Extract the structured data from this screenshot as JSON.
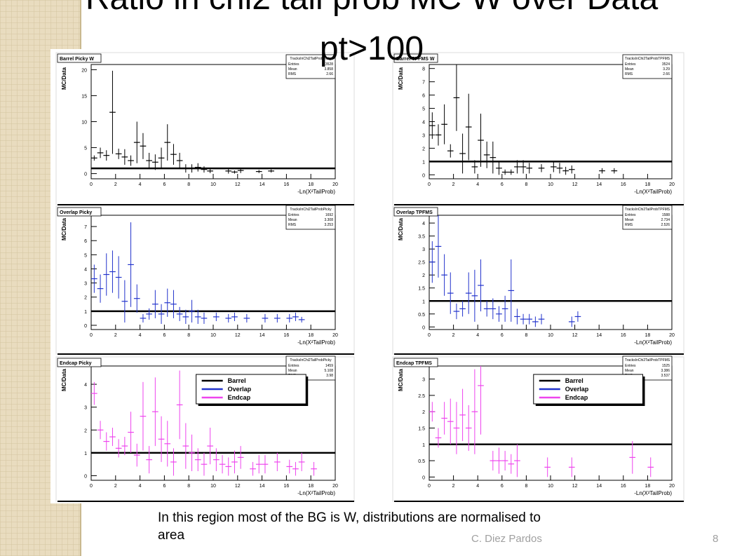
{
  "slide": {
    "title": "Ratio in chi2 tail prob  MC W over Data pt>100",
    "caption": "In this region most of the BG is W, distributions are normalised to area",
    "author": "C. Diez Pardos",
    "page": "8"
  },
  "chart_data": [
    {
      "type": "errorbar",
      "title": "Barrel Picky W",
      "xlabel": "-Ln(X²TailProb)",
      "ylabel": "MC/Data",
      "color": "#000000",
      "ref_line": 1,
      "stats": {
        "name": "TracksInChi2TailProbPicky",
        "labels": [
          "Entries",
          "Mean",
          "RMS"
        ],
        "values": [
          3528,
          3.858,
          2.66
        ]
      },
      "xlim": [
        0,
        20
      ],
      "xticks": [
        0,
        2,
        4,
        6,
        8,
        10,
        12,
        14,
        16,
        18,
        20
      ],
      "ylim": [
        -1,
        21
      ],
      "yticks": [
        0,
        5,
        10,
        15,
        20
      ],
      "x": [
        0.25,
        0.75,
        1.25,
        1.75,
        2.25,
        2.75,
        3.25,
        3.75,
        4.25,
        4.75,
        5.25,
        5.75,
        6.25,
        6.75,
        7.25,
        7.75,
        8.25,
        8.75,
        9.25,
        9.75,
        11.25,
        11.75,
        12.25,
        13.75,
        14.75
      ],
      "values": [
        3,
        4,
        3.5,
        11.8,
        3.8,
        3.2,
        2.5,
        6,
        5.3,
        2.5,
        2.2,
        3,
        6,
        3.7,
        2.5,
        1,
        1,
        1.2,
        0.8,
        0.5,
        0.5,
        0.3,
        0.6,
        0.4,
        0.5
      ],
      "errors": [
        0.5,
        1,
        1,
        8,
        1,
        1.5,
        1,
        4,
        2.5,
        1.5,
        1.5,
        2,
        3.5,
        2,
        1.5,
        0.8,
        0.8,
        0.8,
        0.6,
        0.4,
        0.5,
        0.3,
        0.5,
        0.3,
        0.3
      ]
    },
    {
      "type": "errorbar",
      "title": "Barrel TPFMS W",
      "xlabel": "-Ln(X²TailProb)",
      "ylabel": "MC/Data",
      "color": "#000000",
      "ref_line": 1,
      "stats": {
        "name": "TracksInChi2TailProbTPFMS",
        "labels": [
          "Entries",
          "Mean",
          "RMS"
        ],
        "values": [
          3524,
          3.29,
          2.66
        ]
      },
      "xlim": [
        0,
        20
      ],
      "xticks": [
        0,
        2,
        4,
        6,
        8,
        10,
        12,
        14,
        16,
        18,
        20
      ],
      "ylim": [
        -0.3,
        8.3
      ],
      "yticks": [
        0,
        1,
        2,
        3,
        4,
        5,
        6,
        7,
        8
      ],
      "x": [
        0.25,
        0.75,
        1.25,
        1.75,
        2.25,
        2.75,
        3.25,
        3.75,
        4.25,
        4.75,
        5.25,
        5.75,
        6.25,
        6.75,
        7.25,
        7.75,
        8.25,
        9.25,
        10.25,
        10.75,
        11.25,
        11.75,
        14.25,
        15.25
      ],
      "values": [
        3.7,
        3,
        3.8,
        1.8,
        5.8,
        1.6,
        3.6,
        0.6,
        2.6,
        1.5,
        1.3,
        0.5,
        0.2,
        0.2,
        0.6,
        0.6,
        0.5,
        0.5,
        0.6,
        0.5,
        0.3,
        0.4,
        0.3,
        0.3
      ],
      "errors": [
        1,
        0.8,
        1.5,
        0.5,
        2.5,
        1.5,
        2.5,
        0.5,
        2,
        1,
        1.2,
        0.5,
        0.2,
        0.2,
        0.5,
        0.5,
        0.4,
        0.3,
        0.4,
        0.4,
        0.3,
        0.3,
        0.2,
        0.2
      ]
    },
    {
      "type": "errorbar",
      "title": "Overlap Picky",
      "xlabel": "-Ln(X²TailProb)",
      "ylabel": "MC/Data",
      "color": "#2233cc",
      "ref_line": 1,
      "stats": {
        "name": "TracksInChi2TailProbPicky",
        "labels": [
          "Entries",
          "Mean",
          "RMS"
        ],
        "values": [
          1692,
          3.308,
          3.253
        ]
      },
      "xlim": [
        0,
        20
      ],
      "xticks": [
        0,
        2,
        4,
        6,
        8,
        10,
        12,
        14,
        16,
        18,
        20
      ],
      "ylim": [
        -0.3,
        7.8
      ],
      "yticks": [
        0,
        1,
        2,
        3,
        4,
        5,
        6,
        7
      ],
      "x": [
        0.25,
        0.75,
        1.25,
        1.75,
        2.25,
        2.75,
        3.25,
        3.75,
        4.25,
        4.75,
        5.25,
        5.75,
        6.25,
        6.75,
        7.25,
        7.75,
        8.25,
        8.75,
        9.25,
        10.25,
        11.25,
        11.75,
        12.75,
        14.25,
        15.25,
        16.25,
        16.75,
        17.25
      ],
      "values": [
        3.3,
        2.6,
        3.6,
        3.8,
        3.4,
        1.7,
        4.3,
        1.9,
        0.5,
        0.8,
        1.5,
        0.8,
        1.6,
        1.5,
        0.8,
        0.6,
        1,
        0.6,
        0.5,
        0.6,
        0.5,
        0.6,
        0.5,
        0.5,
        0.5,
        0.5,
        0.6,
        0.4
      ],
      "errors": [
        1,
        1,
        1.5,
        1.5,
        1.5,
        1.5,
        3,
        1,
        0.3,
        0.4,
        1,
        0.7,
        1,
        1,
        0.5,
        0.5,
        0.8,
        0.5,
        0.4,
        0.3,
        0.3,
        0.3,
        0.3,
        0.3,
        0.3,
        0.3,
        0.3,
        0.2
      ]
    },
    {
      "type": "errorbar",
      "title": "Overlap TPFMS",
      "xlabel": "-Ln(X²TailProb)",
      "ylabel": "MC/Data",
      "color": "#2233cc",
      "ref_line": 1,
      "stats": {
        "name": "TracksInChi2TailProbTPFMS",
        "labels": [
          "Entries",
          "Mean",
          "RMS"
        ],
        "values": [
          1588,
          2.734,
          2.526
        ]
      },
      "xlim": [
        0,
        20
      ],
      "xticks": [
        0,
        2,
        4,
        6,
        8,
        10,
        12,
        14,
        16,
        18,
        20
      ],
      "ylim": [
        -0.1,
        4.3
      ],
      "yticks": [
        0,
        0.5,
        1,
        1.5,
        2,
        2.5,
        3,
        3.5,
        4
      ],
      "x": [
        0.25,
        0.75,
        1.25,
        1.75,
        2.25,
        2.75,
        3.25,
        3.75,
        4.25,
        4.75,
        5.25,
        5.75,
        6.25,
        6.75,
        7.25,
        7.75,
        8.25,
        8.75,
        9.25,
        11.75,
        12.25
      ],
      "values": [
        2.5,
        3.1,
        2,
        1.3,
        0.6,
        0.7,
        1.3,
        1.2,
        1.6,
        0.7,
        0.7,
        0.5,
        0.7,
        1.4,
        0.4,
        0.3,
        0.3,
        0.2,
        0.3,
        0.2,
        0.4
      ],
      "errors": [
        0.8,
        1.2,
        0.8,
        0.8,
        0.3,
        0.3,
        0.8,
        1,
        1,
        0.3,
        0.4,
        0.3,
        0.5,
        1.2,
        0.3,
        0.2,
        0.2,
        0.2,
        0.2,
        0.2,
        0.2
      ]
    },
    {
      "type": "errorbar",
      "title": "Endcap Picky",
      "xlabel": "-Ln(X²TailProb)",
      "ylabel": "MC/Data",
      "color": "#ee44ee",
      "ref_line": 1,
      "stats": {
        "name": "TracksInChi2TailProbPicky",
        "labels": [
          "Entries",
          "Mean",
          "RMS"
        ],
        "values": [
          1459,
          5.108,
          3.98
        ]
      },
      "legend_entries": [
        {
          "name": "Barrel",
          "color": "#000000"
        },
        {
          "name": "Overlap",
          "color": "#2233cc"
        },
        {
          "name": "Endcap",
          "color": "#ee44ee"
        }
      ],
      "xlim": [
        0,
        20
      ],
      "xticks": [
        0,
        2,
        4,
        6,
        8,
        10,
        12,
        14,
        16,
        18,
        20
      ],
      "ylim": [
        -0.2,
        4.8
      ],
      "yticks": [
        0,
        1,
        2,
        3,
        4
      ],
      "x": [
        0.25,
        0.75,
        1.25,
        1.75,
        2.25,
        2.75,
        3.25,
        3.75,
        4.25,
        4.75,
        5.25,
        5.75,
        6.25,
        6.75,
        7.25,
        7.75,
        8.25,
        8.75,
        9.25,
        9.75,
        10.25,
        10.75,
        11.25,
        11.75,
        12.25,
        13.25,
        13.75,
        14.25,
        15.25,
        16.25,
        16.75,
        17.25,
        18.25
      ],
      "values": [
        3.6,
        2,
        1.5,
        1.7,
        1.2,
        1.3,
        1.9,
        0.9,
        2.6,
        0.7,
        2.8,
        1.6,
        1.4,
        0.6,
        3.1,
        1.3,
        1,
        0.7,
        0.5,
        1.3,
        0.7,
        0.5,
        0.4,
        0.6,
        0.8,
        0.3,
        0.5,
        0.5,
        0.6,
        0.4,
        0.3,
        0.6,
        0.3
      ],
      "errors": [
        0.5,
        0.4,
        0.4,
        0.4,
        0.4,
        0.4,
        0.9,
        0.5,
        1.5,
        0.6,
        1.5,
        1,
        1,
        0.6,
        1.5,
        1,
        0.8,
        0.5,
        0.5,
        0.8,
        0.5,
        0.4,
        0.4,
        0.5,
        0.5,
        0.3,
        0.4,
        0.4,
        0.4,
        0.3,
        0.3,
        0.4,
        0.3
      ]
    },
    {
      "type": "errorbar",
      "title": "Endcap TPFMS",
      "xlabel": "-Ln(X²TailProb)",
      "ylabel": "MC/Data",
      "color": "#ee44ee",
      "ref_line": 1,
      "stats": {
        "name": "TracksInChi2TailProbTPFMS",
        "labels": [
          "Entries",
          "Mean",
          "RMS"
        ],
        "values": [
          1525,
          3.386,
          3.537
        ]
      },
      "legend_entries": [
        {
          "name": "Barrel",
          "color": "#000000"
        },
        {
          "name": "Overlap",
          "color": "#2233cc"
        },
        {
          "name": "Endcap",
          "color": "#ee44ee"
        }
      ],
      "xlim": [
        0,
        20
      ],
      "xticks": [
        0,
        2,
        4,
        6,
        8,
        10,
        12,
        14,
        16,
        18,
        20
      ],
      "ylim": [
        -0.1,
        3.4
      ],
      "yticks": [
        0,
        0.5,
        1,
        1.5,
        2,
        2.5,
        3
      ],
      "x": [
        0.25,
        0.75,
        1.25,
        1.75,
        2.25,
        2.75,
        3.25,
        3.75,
        4.25,
        5.25,
        5.75,
        6.25,
        6.75,
        7.25,
        9.75,
        11.75,
        16.75,
        18.25
      ],
      "values": [
        2,
        1.2,
        1.8,
        1.7,
        1.5,
        1.9,
        1.5,
        2,
        2.8,
        0.5,
        0.5,
        0.5,
        0.4,
        0.5,
        0.3,
        0.3,
        0.6,
        0.3
      ],
      "errors": [
        0.3,
        0.3,
        0.5,
        0.7,
        0.8,
        0.8,
        0.7,
        1.3,
        1.5,
        0.3,
        0.4,
        0.3,
        0.3,
        0.5,
        0.3,
        0.3,
        0.5,
        0.3
      ]
    }
  ]
}
